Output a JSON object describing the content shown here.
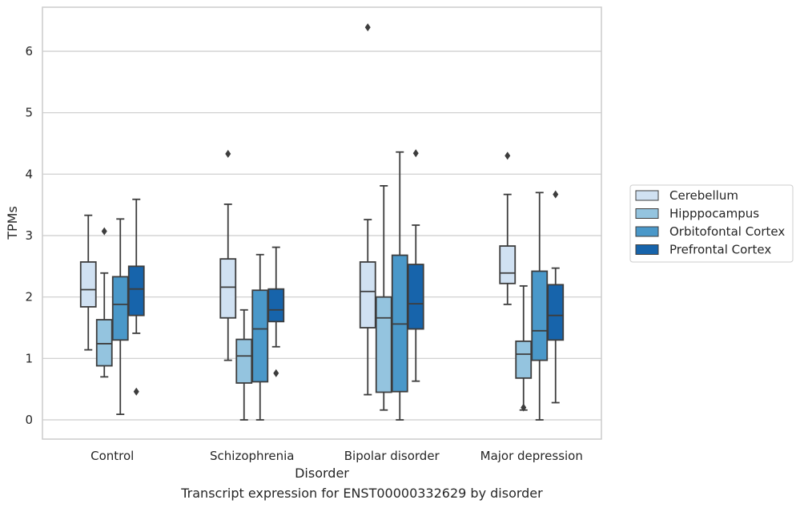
{
  "caption": "Transcript expression for ENST00000332629 by disorder",
  "chart_data": {
    "type": "box",
    "title": "",
    "xlabel": "Disorder",
    "ylabel": "TPMs",
    "ylim": [
      -0.3,
      6.7
    ],
    "yticks": [
      0,
      1,
      2,
      3,
      4,
      5,
      6
    ],
    "grid": true,
    "legend_position": "right",
    "categories": [
      "Control",
      "Schizophrenia",
      "Bipolar disorder",
      "Major depression"
    ],
    "series": [
      {
        "name": "Cerebellum",
        "color": "#d0e1f2",
        "boxes": [
          {
            "whisker_low": 1.14,
            "q1": 1.84,
            "median": 2.12,
            "q3": 2.57,
            "whisker_high": 3.33,
            "outliers": []
          },
          {
            "whisker_low": 0.97,
            "q1": 1.66,
            "median": 2.16,
            "q3": 2.62,
            "whisker_high": 3.51,
            "outliers": [
              4.33
            ]
          },
          {
            "whisker_low": 0.41,
            "q1": 1.5,
            "median": 2.09,
            "q3": 2.57,
            "whisker_high": 3.26,
            "outliers": [
              6.39
            ]
          },
          {
            "whisker_low": 1.88,
            "q1": 2.22,
            "median": 2.39,
            "q3": 2.83,
            "whisker_high": 3.67,
            "outliers": [
              4.3
            ]
          }
        ]
      },
      {
        "name": "Hipppocampus",
        "color": "#94c4df",
        "boxes": [
          {
            "whisker_low": 0.7,
            "q1": 0.88,
            "median": 1.24,
            "q3": 1.63,
            "whisker_high": 2.39,
            "outliers": [
              3.07
            ]
          },
          {
            "whisker_low": 0.0,
            "q1": 0.6,
            "median": 1.04,
            "q3": 1.31,
            "whisker_high": 1.79,
            "outliers": []
          },
          {
            "whisker_low": 0.16,
            "q1": 0.45,
            "median": 1.66,
            "q3": 2.0,
            "whisker_high": 3.81,
            "outliers": []
          },
          {
            "whisker_low": 0.16,
            "q1": 0.68,
            "median": 1.07,
            "q3": 1.28,
            "whisker_high": 2.18,
            "outliers": [
              0.2
            ]
          }
        ]
      },
      {
        "name": "Orbitofontal Cortex",
        "color": "#4a98c9",
        "boxes": [
          {
            "whisker_low": 0.09,
            "q1": 1.3,
            "median": 1.88,
            "q3": 2.33,
            "whisker_high": 3.27,
            "outliers": []
          },
          {
            "whisker_low": 0.0,
            "q1": 0.62,
            "median": 1.48,
            "q3": 2.11,
            "whisker_high": 2.69,
            "outliers": []
          },
          {
            "whisker_low": 0.0,
            "q1": 0.46,
            "median": 1.56,
            "q3": 2.68,
            "whisker_high": 4.36,
            "outliers": []
          },
          {
            "whisker_low": 0.0,
            "q1": 0.97,
            "median": 1.45,
            "q3": 2.42,
            "whisker_high": 3.7,
            "outliers": []
          }
        ]
      },
      {
        "name": "Prefrontal Cortex",
        "color": "#1764ab",
        "boxes": [
          {
            "whisker_low": 1.41,
            "q1": 1.7,
            "median": 2.13,
            "q3": 2.5,
            "whisker_high": 3.59,
            "outliers": [
              0.46
            ]
          },
          {
            "whisker_low": 1.19,
            "q1": 1.6,
            "median": 1.79,
            "q3": 2.13,
            "whisker_high": 2.81,
            "outliers": [
              0.76
            ]
          },
          {
            "whisker_low": 0.63,
            "q1": 1.48,
            "median": 1.89,
            "q3": 2.53,
            "whisker_high": 3.17,
            "outliers": [
              4.34
            ]
          },
          {
            "whisker_low": 0.28,
            "q1": 1.3,
            "median": 1.7,
            "q3": 2.2,
            "whisker_high": 2.47,
            "outliers": [
              3.67
            ]
          }
        ]
      }
    ]
  }
}
